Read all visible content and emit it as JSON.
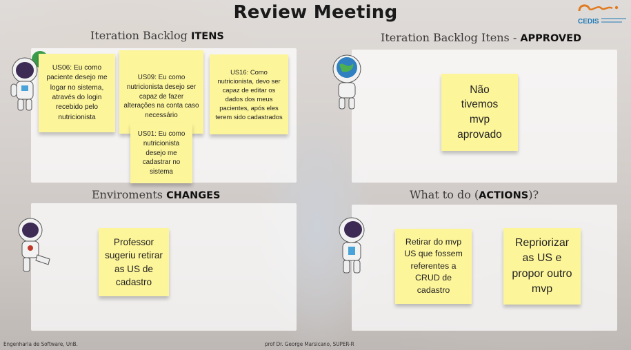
{
  "title": "Review Meeting",
  "logo": {
    "text": "CEDIS",
    "brand_color": "#e07a1f"
  },
  "sections": {
    "backlog": {
      "prefix": "Iteration Backlog ",
      "emphasis": "ITENS"
    },
    "approved": {
      "prefix": "Iteration Backlog Itens - ",
      "emphasis": "APPROVED"
    },
    "changes": {
      "prefix": "Enviroments ",
      "emphasis": "CHANGES"
    },
    "actions": {
      "prefix": "What to do (",
      "emphasis": "ACTIONS",
      "suffix": ")?"
    }
  },
  "notes": {
    "us06": "US06: Eu como paciente desejo me logar no sistema, através do login recebido pelo nutricionista",
    "us09": "US09: Eu como nutricionista desejo ser capaz de fazer alterações na conta caso necessário",
    "us16": "US16: Como nutricionista, devo ser capaz de editar os dados dos meus pacientes, após eles terem sido cadastrados",
    "us01": "US01: Eu como nutricionista desejo me cadastrar no sistema",
    "approved": "Não tivemos mvp aprovado",
    "change": "Professor sugeriu retirar as US de cadastro",
    "action1": "Retirar do mvp US que fossem referentes a CRUD de cadastro",
    "action2": "Repriorizar as US e propor outro mvp"
  },
  "footer": {
    "left": "Engenharia de Software, UnB.",
    "center": "prof Dr. George Marsicano, SUPER-R"
  }
}
